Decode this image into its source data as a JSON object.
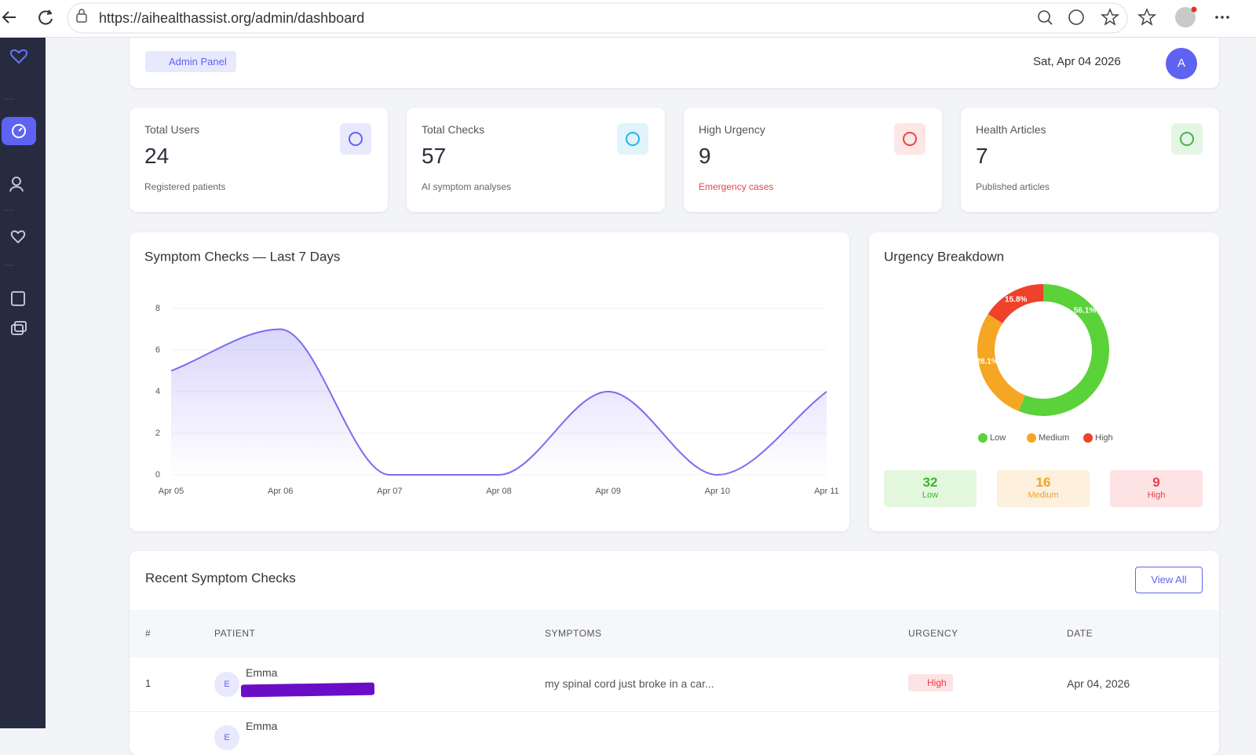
{
  "browser": {
    "url": "https://aihealthassist.org/admin/dashboard"
  },
  "header": {
    "badge": "Admin Panel",
    "date": "Sat, Apr 04 2026",
    "avatar": "A"
  },
  "stats": [
    {
      "label": "Total Users",
      "value": 24,
      "note": "Registered patients"
    },
    {
      "label": "Total Checks",
      "value": 57,
      "note": "AI symptom analyses"
    },
    {
      "label": "High Urgency",
      "value": 9,
      "note": "Emergency cases"
    },
    {
      "label": "Health Articles",
      "value": 7,
      "note": "Published articles"
    }
  ],
  "chart_data": [
    {
      "type": "line",
      "title": "Symptom Checks — Last 7 Days",
      "categories": [
        "Apr 05",
        "Apr 06",
        "Apr 07",
        "Apr 08",
        "Apr 09",
        "Apr 10",
        "Apr 11"
      ],
      "values": [
        5,
        7,
        0,
        0,
        4,
        0,
        4
      ],
      "color": "#7b6cf0",
      "ylim": [
        0,
        8
      ],
      "yticks": [
        0,
        2,
        4,
        6,
        8
      ],
      "grid": true
    },
    {
      "type": "pie",
      "title": "Urgency Breakdown",
      "categories": [
        "Low",
        "Medium",
        "High"
      ],
      "values": [
        56.1,
        28.1,
        15.8
      ],
      "value_labels": [
        "56.1%",
        "28.1%",
        "15.8%"
      ],
      "colors": [
        "#5ad23a",
        "#f5a623",
        "#f0412a"
      ],
      "legend": "bottom"
    }
  ],
  "breakdown": [
    {
      "value": 32,
      "label": "Low"
    },
    {
      "value": 16,
      "label": "Medium"
    },
    {
      "value": 9,
      "label": "High"
    }
  ],
  "table": {
    "title": "Recent Symptom Checks",
    "action": "View All",
    "columns": [
      "#",
      "PATIENT",
      "SYMPTOMS",
      "URGENCY",
      "DATE"
    ],
    "rows": [
      {
        "index": "1",
        "initial": "E",
        "patient": "Emma",
        "symptoms": "my spinal cord just broke in a car...",
        "urgency": "High",
        "date": "Apr 04, 2026"
      },
      {
        "initial": "E",
        "patient": "Emma"
      }
    ]
  }
}
